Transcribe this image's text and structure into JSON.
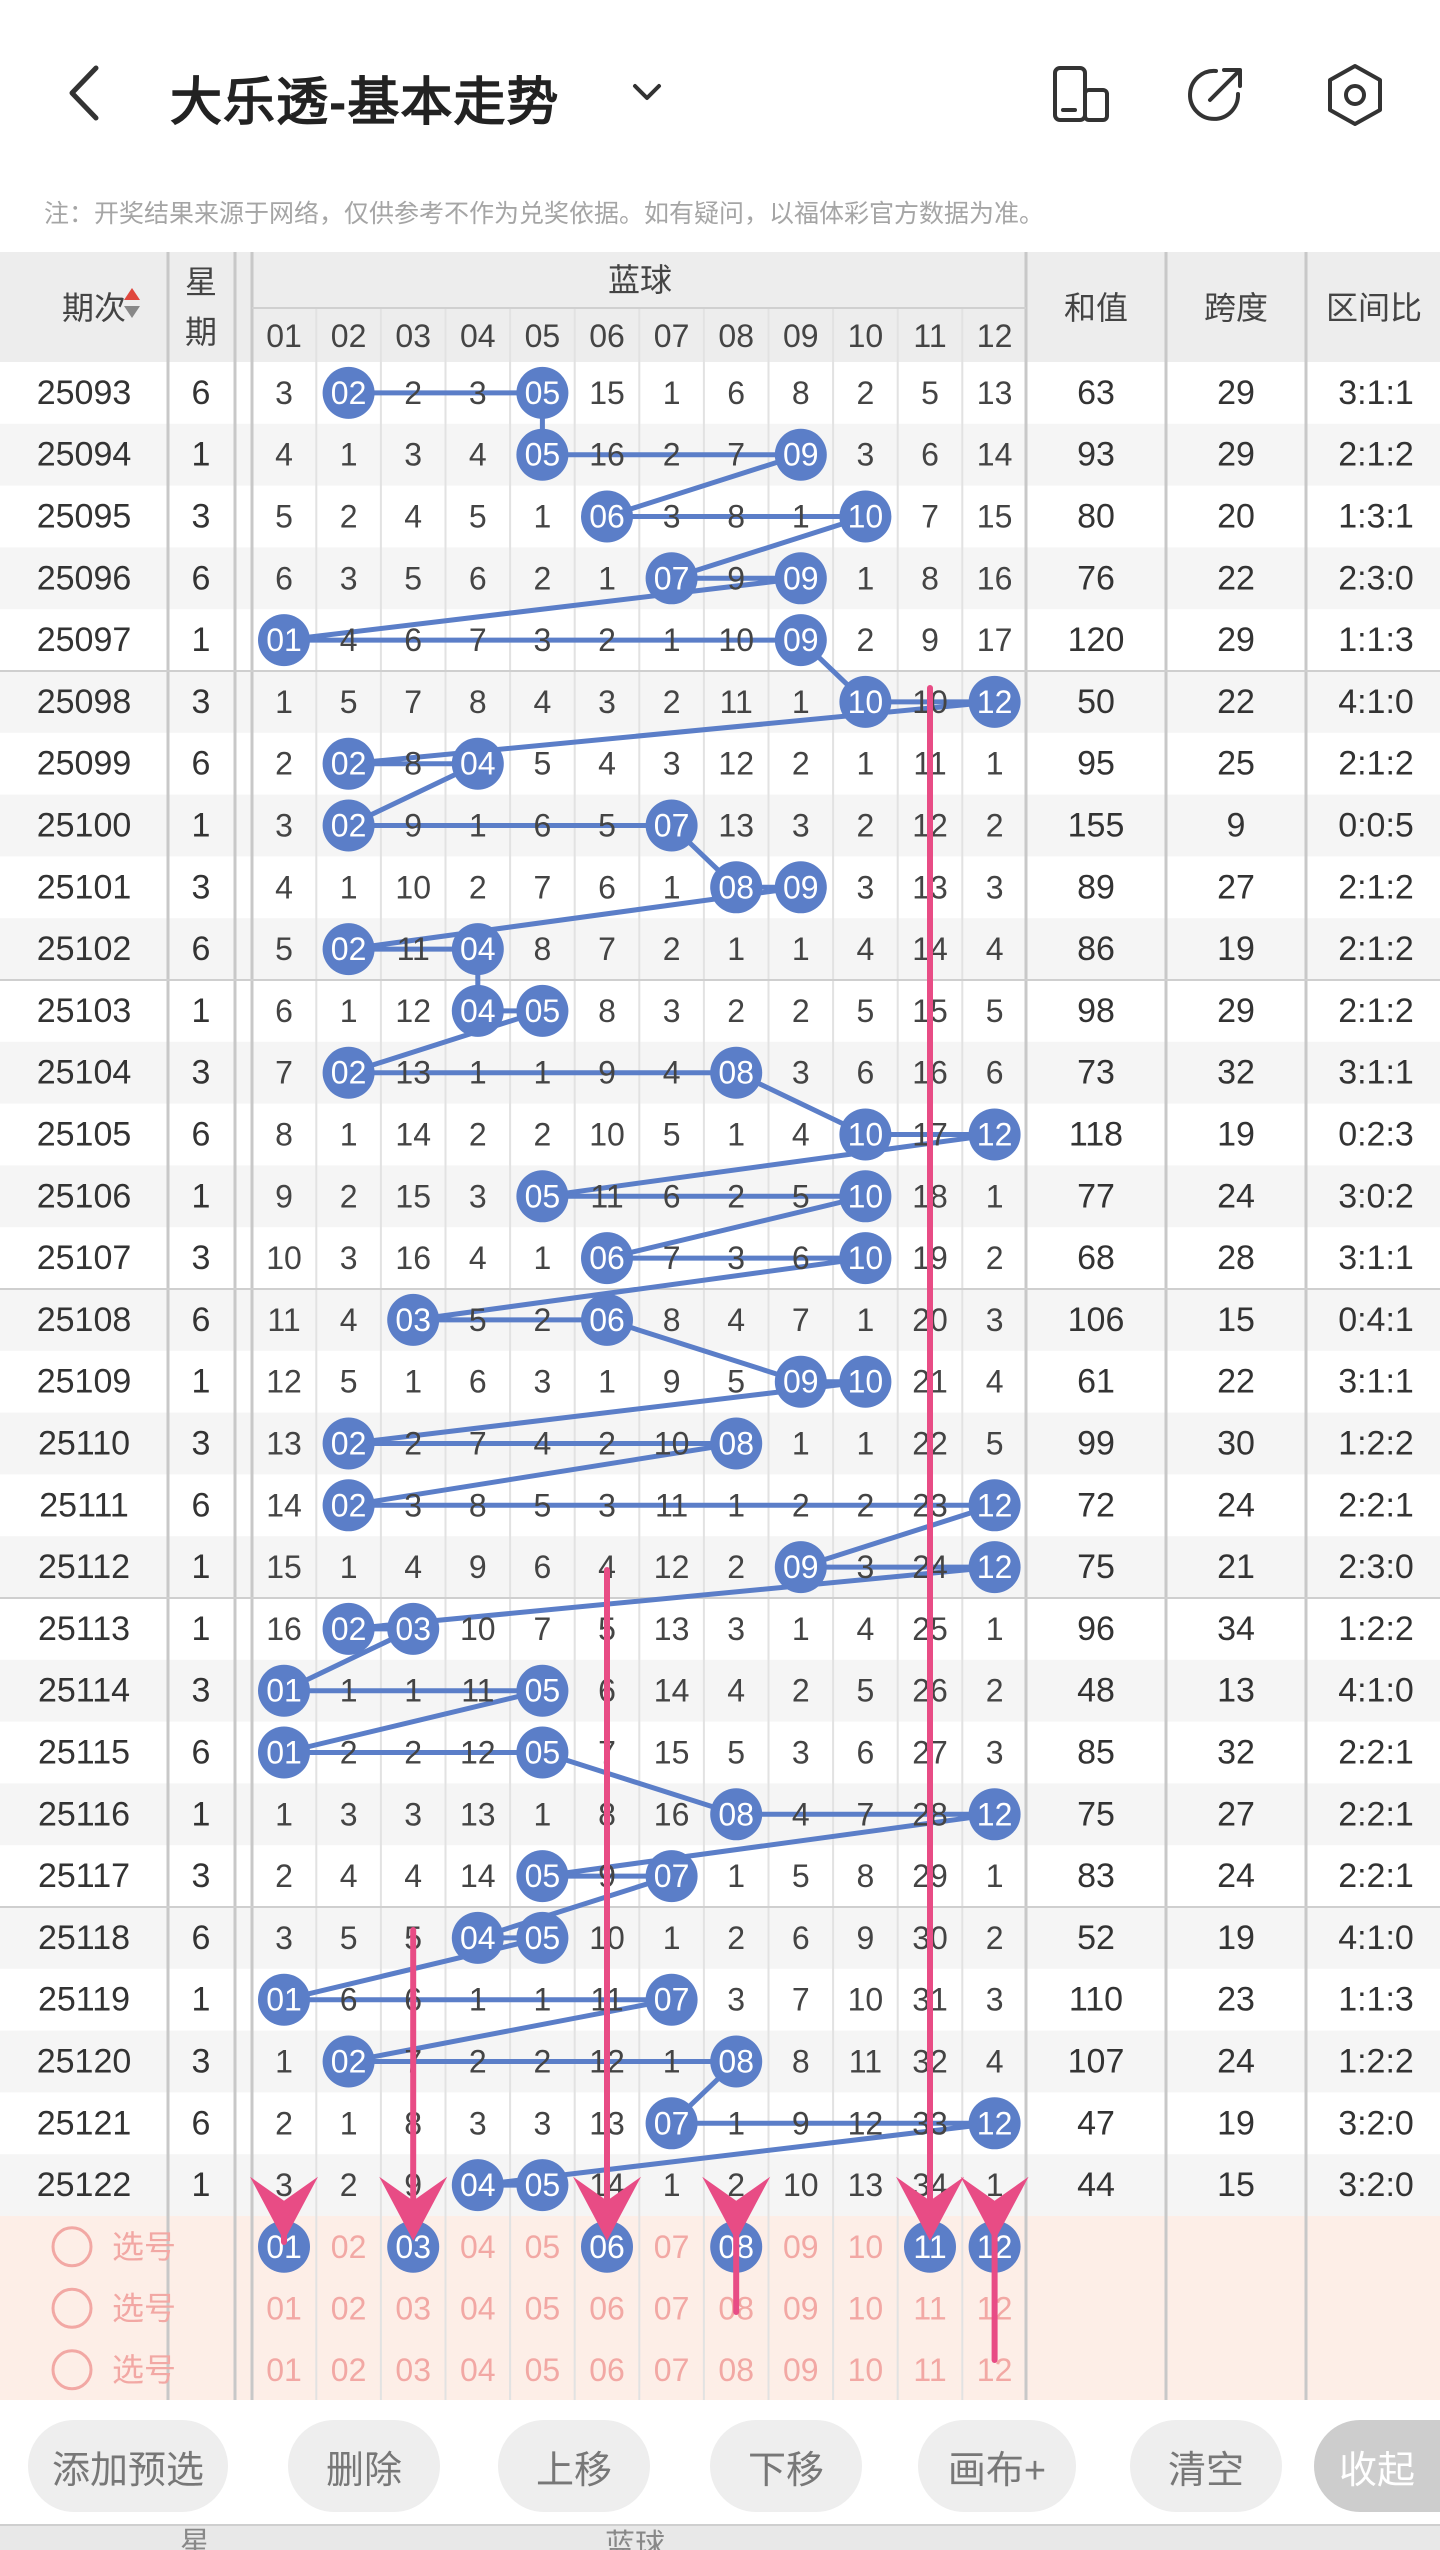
{
  "header": {
    "title": "大乐透-基本走势",
    "icons": [
      "back-arrow-icon",
      "chevron-down-icon",
      "phone-rotate-icon",
      "share-icon",
      "settings-gear-icon"
    ]
  },
  "note": "注：开奖结果来源于网络，仅供参考不作为兑奖依据。如有疑问，以福体彩官方数据为准。",
  "table": {
    "columns": {
      "period": "期次",
      "weekday_top": "星",
      "weekday_bottom": "期",
      "blue_group": "蓝球",
      "blue_numbers": [
        "01",
        "02",
        "03",
        "04",
        "05",
        "06",
        "07",
        "08",
        "09",
        "10",
        "11",
        "12"
      ],
      "sum": "和值",
      "span": "跨度",
      "ratio": "区间比"
    },
    "rows": [
      {
        "period": "25093",
        "weekday": "6",
        "cells": [
          "3",
          "02",
          "2",
          "3",
          "05",
          "15",
          "1",
          "6",
          "8",
          "2",
          "5",
          "13"
        ],
        "hits": [
          2,
          5
        ],
        "sum": "63",
        "span": "29",
        "ratio": "3:1:1"
      },
      {
        "period": "25094",
        "weekday": "1",
        "cells": [
          "4",
          "1",
          "3",
          "4",
          "05",
          "16",
          "2",
          "7",
          "09",
          "3",
          "6",
          "14"
        ],
        "hits": [
          5,
          9
        ],
        "sum": "93",
        "span": "29",
        "ratio": "2:1:2"
      },
      {
        "period": "25095",
        "weekday": "3",
        "cells": [
          "5",
          "2",
          "4",
          "5",
          "1",
          "06",
          "3",
          "8",
          "1",
          "10",
          "7",
          "15"
        ],
        "hits": [
          6,
          10
        ],
        "sum": "80",
        "span": "20",
        "ratio": "1:3:1"
      },
      {
        "period": "25096",
        "weekday": "6",
        "cells": [
          "6",
          "3",
          "5",
          "6",
          "2",
          "1",
          "07",
          "9",
          "09",
          "1",
          "8",
          "16"
        ],
        "hits": [
          7,
          9
        ],
        "sum": "76",
        "span": "22",
        "ratio": "2:3:0"
      },
      {
        "period": "25097",
        "weekday": "1",
        "cells": [
          "01",
          "4",
          "6",
          "7",
          "3",
          "2",
          "1",
          "10",
          "09",
          "2",
          "9",
          "17"
        ],
        "hits": [
          1,
          9
        ],
        "sum": "120",
        "span": "29",
        "ratio": "1:1:3"
      },
      {
        "period": "25098",
        "weekday": "3",
        "cells": [
          "1",
          "5",
          "7",
          "8",
          "4",
          "3",
          "2",
          "11",
          "1",
          "10",
          "10",
          "12"
        ],
        "hits": [
          10,
          12
        ],
        "sum": "50",
        "span": "22",
        "ratio": "4:1:0"
      },
      {
        "period": "25099",
        "weekday": "6",
        "cells": [
          "2",
          "02",
          "8",
          "04",
          "5",
          "4",
          "3",
          "12",
          "2",
          "1",
          "11",
          "1"
        ],
        "hits": [
          2,
          4
        ],
        "sum": "95",
        "span": "25",
        "ratio": "2:1:2"
      },
      {
        "period": "25100",
        "weekday": "1",
        "cells": [
          "3",
          "02",
          "9",
          "1",
          "6",
          "5",
          "07",
          "13",
          "3",
          "2",
          "12",
          "2"
        ],
        "hits": [
          2,
          7
        ],
        "sum": "155",
        "span": "9",
        "ratio": "0:0:5"
      },
      {
        "period": "25101",
        "weekday": "3",
        "cells": [
          "4",
          "1",
          "10",
          "2",
          "7",
          "6",
          "1",
          "08",
          "09",
          "3",
          "13",
          "3"
        ],
        "hits": [
          8,
          9
        ],
        "sum": "89",
        "span": "27",
        "ratio": "2:1:2"
      },
      {
        "period": "25102",
        "weekday": "6",
        "cells": [
          "5",
          "02",
          "11",
          "04",
          "8",
          "7",
          "2",
          "1",
          "1",
          "4",
          "14",
          "4"
        ],
        "hits": [
          2,
          4
        ],
        "sum": "86",
        "span": "19",
        "ratio": "2:1:2"
      },
      {
        "period": "25103",
        "weekday": "1",
        "cells": [
          "6",
          "1",
          "12",
          "04",
          "05",
          "8",
          "3",
          "2",
          "2",
          "5",
          "15",
          "5"
        ],
        "hits": [
          4,
          5
        ],
        "sum": "98",
        "span": "29",
        "ratio": "2:1:2"
      },
      {
        "period": "25104",
        "weekday": "3",
        "cells": [
          "7",
          "02",
          "13",
          "1",
          "1",
          "9",
          "4",
          "08",
          "3",
          "6",
          "16",
          "6"
        ],
        "hits": [
          2,
          8
        ],
        "sum": "73",
        "span": "32",
        "ratio": "3:1:1"
      },
      {
        "period": "25105",
        "weekday": "6",
        "cells": [
          "8",
          "1",
          "14",
          "2",
          "2",
          "10",
          "5",
          "1",
          "4",
          "10",
          "17",
          "12"
        ],
        "hits": [
          10,
          12
        ],
        "sum": "118",
        "span": "19",
        "ratio": "0:2:3"
      },
      {
        "period": "25106",
        "weekday": "1",
        "cells": [
          "9",
          "2",
          "15",
          "3",
          "05",
          "11",
          "6",
          "2",
          "5",
          "10",
          "18",
          "1"
        ],
        "hits": [
          5,
          10
        ],
        "sum": "77",
        "span": "24",
        "ratio": "3:0:2"
      },
      {
        "period": "25107",
        "weekday": "3",
        "cells": [
          "10",
          "3",
          "16",
          "4",
          "1",
          "06",
          "7",
          "3",
          "6",
          "10",
          "19",
          "2"
        ],
        "hits": [
          6,
          10
        ],
        "sum": "68",
        "span": "28",
        "ratio": "3:1:1"
      },
      {
        "period": "25108",
        "weekday": "6",
        "cells": [
          "11",
          "4",
          "03",
          "5",
          "2",
          "06",
          "8",
          "4",
          "7",
          "1",
          "20",
          "3"
        ],
        "hits": [
          3,
          6
        ],
        "sum": "106",
        "span": "15",
        "ratio": "0:4:1"
      },
      {
        "period": "25109",
        "weekday": "1",
        "cells": [
          "12",
          "5",
          "1",
          "6",
          "3",
          "1",
          "9",
          "5",
          "09",
          "10",
          "21",
          "4"
        ],
        "hits": [
          9,
          10
        ],
        "sum": "61",
        "span": "22",
        "ratio": "3:1:1"
      },
      {
        "period": "25110",
        "weekday": "3",
        "cells": [
          "13",
          "02",
          "2",
          "7",
          "4",
          "2",
          "10",
          "08",
          "1",
          "1",
          "22",
          "5"
        ],
        "hits": [
          2,
          8
        ],
        "sum": "99",
        "span": "30",
        "ratio": "1:2:2"
      },
      {
        "period": "25111",
        "weekday": "6",
        "cells": [
          "14",
          "02",
          "3",
          "8",
          "5",
          "3",
          "11",
          "1",
          "2",
          "2",
          "23",
          "12"
        ],
        "hits": [
          2,
          12
        ],
        "sum": "72",
        "span": "24",
        "ratio": "2:2:1"
      },
      {
        "period": "25112",
        "weekday": "1",
        "cells": [
          "15",
          "1",
          "4",
          "9",
          "6",
          "4",
          "12",
          "2",
          "09",
          "3",
          "24",
          "12"
        ],
        "hits": [
          9,
          12
        ],
        "sum": "75",
        "span": "21",
        "ratio": "2:3:0"
      },
      {
        "period": "25113",
        "weekday": "1",
        "cells": [
          "16",
          "02",
          "03",
          "10",
          "7",
          "5",
          "13",
          "3",
          "1",
          "4",
          "25",
          "1"
        ],
        "hits": [
          2,
          3
        ],
        "sum": "96",
        "span": "34",
        "ratio": "1:2:2"
      },
      {
        "period": "25114",
        "weekday": "3",
        "cells": [
          "01",
          "1",
          "1",
          "11",
          "05",
          "6",
          "14",
          "4",
          "2",
          "5",
          "26",
          "2"
        ],
        "hits": [
          1,
          5
        ],
        "sum": "48",
        "span": "13",
        "ratio": "4:1:0"
      },
      {
        "period": "25115",
        "weekday": "6",
        "cells": [
          "01",
          "2",
          "2",
          "12",
          "05",
          "7",
          "15",
          "5",
          "3",
          "6",
          "27",
          "3"
        ],
        "hits": [
          1,
          5
        ],
        "sum": "85",
        "span": "32",
        "ratio": "2:2:1"
      },
      {
        "period": "25116",
        "weekday": "1",
        "cells": [
          "1",
          "3",
          "3",
          "13",
          "1",
          "8",
          "16",
          "08",
          "4",
          "7",
          "28",
          "12"
        ],
        "hits": [
          8,
          12
        ],
        "sum": "75",
        "span": "27",
        "ratio": "2:2:1"
      },
      {
        "period": "25117",
        "weekday": "3",
        "cells": [
          "2",
          "4",
          "4",
          "14",
          "05",
          "9",
          "07",
          "1",
          "5",
          "8",
          "29",
          "1"
        ],
        "hits": [
          5,
          7
        ],
        "sum": "83",
        "span": "24",
        "ratio": "2:2:1"
      },
      {
        "period": "25118",
        "weekday": "6",
        "cells": [
          "3",
          "5",
          "5",
          "04",
          "05",
          "10",
          "1",
          "2",
          "6",
          "9",
          "30",
          "2"
        ],
        "hits": [
          4,
          5
        ],
        "sum": "52",
        "span": "19",
        "ratio": "4:1:0"
      },
      {
        "period": "25119",
        "weekday": "1",
        "cells": [
          "01",
          "6",
          "6",
          "1",
          "1",
          "11",
          "07",
          "3",
          "7",
          "10",
          "31",
          "3"
        ],
        "hits": [
          1,
          7
        ],
        "sum": "110",
        "span": "23",
        "ratio": "1:1:3"
      },
      {
        "period": "25120",
        "weekday": "3",
        "cells": [
          "1",
          "02",
          "7",
          "2",
          "2",
          "12",
          "1",
          "08",
          "8",
          "11",
          "32",
          "4"
        ],
        "hits": [
          2,
          8
        ],
        "sum": "107",
        "span": "24",
        "ratio": "1:2:2"
      },
      {
        "period": "25121",
        "weekday": "6",
        "cells": [
          "2",
          "1",
          "8",
          "3",
          "3",
          "13",
          "07",
          "1",
          "9",
          "12",
          "33",
          "12"
        ],
        "hits": [
          7,
          12
        ],
        "sum": "47",
        "span": "19",
        "ratio": "3:2:0"
      },
      {
        "period": "25122",
        "weekday": "1",
        "cells": [
          "3",
          "2",
          "9",
          "04",
          "05",
          "14",
          "1",
          "2",
          "10",
          "13",
          "34",
          "1"
        ],
        "hits": [
          4,
          5
        ],
        "sum": "44",
        "span": "15",
        "ratio": "3:2:0"
      }
    ],
    "pick_rows": [
      {
        "label": "选号",
        "selected": [
          1,
          3,
          6,
          8,
          11,
          12
        ]
      },
      {
        "label": "选号",
        "selected": []
      },
      {
        "label": "选号",
        "selected": []
      }
    ],
    "arrow_columns": [
      1,
      3,
      6,
      8,
      11,
      12
    ]
  },
  "toolbar": {
    "add_preselect": "添加预选",
    "delete": "删除",
    "move_up": "上移",
    "move_down": "下移",
    "canvas": "画布+",
    "clear": "清空",
    "collapse": "收起"
  },
  "colors": {
    "ball": "#5b7ec8",
    "line": "#5b7ec8",
    "arrow": "#e84c85",
    "pick_bg": "#fdeee7",
    "pick_text": "#f2a8a4",
    "header_bg": "#ededed",
    "stripe": "#f5f5f5"
  }
}
